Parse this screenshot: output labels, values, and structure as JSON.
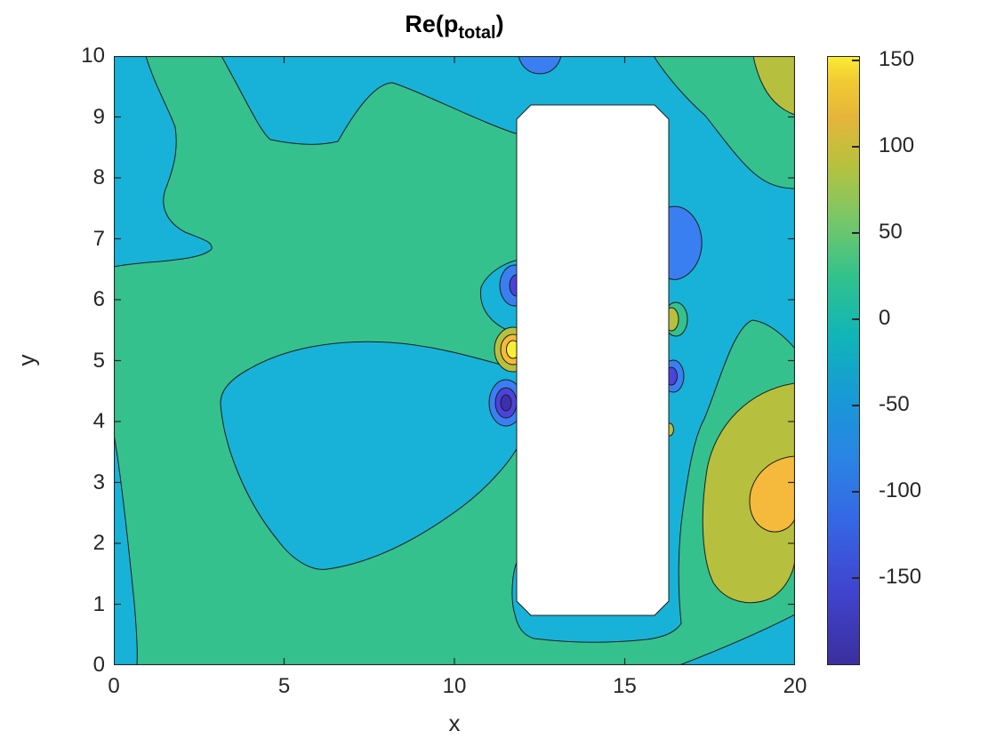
{
  "title": {
    "prefix": "Re(p",
    "subscript": "total",
    "suffix": ")"
  },
  "axes": {
    "xlabel": "x",
    "ylabel": "y",
    "x_ticks": [
      0,
      5,
      10,
      15,
      20
    ],
    "y_ticks": [
      0,
      1,
      2,
      3,
      4,
      5,
      6,
      7,
      8,
      9,
      10
    ],
    "x_range": [
      0,
      20
    ],
    "y_range": [
      0,
      10
    ]
  },
  "colorbar": {
    "tick_labels": [
      150,
      100,
      50,
      0,
      -50,
      -100,
      -150
    ],
    "value_max": 152,
    "value_min": -201
  },
  "palette": {
    "green": "#35c18d",
    "cyan": "#18b2d8",
    "blue": "#3a7ff2",
    "indigo": "#4b43dc",
    "deep_indigo": "#3d2fae",
    "olive": "#b6c03e",
    "orange": "#f5b93c",
    "yellow": "#f8ef35",
    "axis_color": "#262626",
    "contour_line": "#1d1d1d",
    "obstacle_fill": "#ffffff"
  },
  "chart_data": {
    "type": "heatmap",
    "subtype": "filled-contour",
    "title": "Re(p_total)",
    "xlabel": "x",
    "ylabel": "y",
    "x_range": [
      0,
      20
    ],
    "y_range": [
      0,
      10
    ],
    "grid": false,
    "legend_position": "colorbar-right",
    "contour_levels": [
      -200,
      -150,
      -100,
      -50,
      0,
      50,
      100,
      150
    ],
    "colorbar_ticks": [
      150,
      100,
      50,
      0,
      -50,
      -100,
      -150
    ],
    "color_limits": [
      -201,
      152
    ],
    "colormap": "parula",
    "obstacle": {
      "shape": "rectangle-chamfered",
      "x": [
        11.8,
        16.3
      ],
      "y": [
        0.82,
        9.26
      ],
      "color": "white"
    },
    "regions": [
      {
        "band": "0 to 50",
        "color": "green",
        "where": "dominant background field left of obstacle, bottom strip y<0.45, SE lobe around (18.5,3), top-left vertical band x 1-3, diagonal band from (16,10) to (20,7.9)"
      },
      {
        "band": "-50 to 0",
        "color": "cyan",
        "where": "top band y>8.6 spanning x 3-18, upper-left corner x<1 y>6.6, left edge strip x<0.7 y<3.8, central lake x 3.2-11.8 y 1.5-4.9, corridor east of obstacle, strip below obstacle y 0.45-0.85, bottom-right corner x>16.6 y<0.8"
      },
      {
        "band": "-100 to -50",
        "color": "blue",
        "features": [
          [
            12.4,
            10.0
          ],
          [
            11.5,
            6.25
          ],
          [
            11.5,
            4.3
          ],
          [
            16.6,
            7.0
          ],
          [
            16.3,
            4.75
          ]
        ]
      },
      {
        "band": "-150 to -100",
        "color": "indigo",
        "features": [
          [
            11.5,
            6.25
          ],
          [
            11.5,
            4.3
          ],
          [
            16.3,
            4.75
          ]
        ]
      },
      {
        "band": "-200 to -150",
        "color": "deep_indigo",
        "features": [
          [
            11.5,
            4.3
          ]
        ]
      },
      {
        "band": "50 to 100",
        "color": "olive",
        "features": [
          [
            19.5,
            9.5
          ],
          [
            11.6,
            5.2
          ],
          [
            16.2,
            5.7
          ],
          [
            18.8,
            2.8
          ],
          [
            16.2,
            3.9
          ]
        ]
      },
      {
        "band": "100 to 150",
        "color": "orange",
        "features": [
          [
            11.6,
            5.2
          ],
          [
            19.4,
            2.85
          ]
        ]
      },
      {
        "band": "above 150",
        "color": "yellow",
        "features": [
          [
            11.6,
            5.2
          ]
        ]
      }
    ]
  }
}
